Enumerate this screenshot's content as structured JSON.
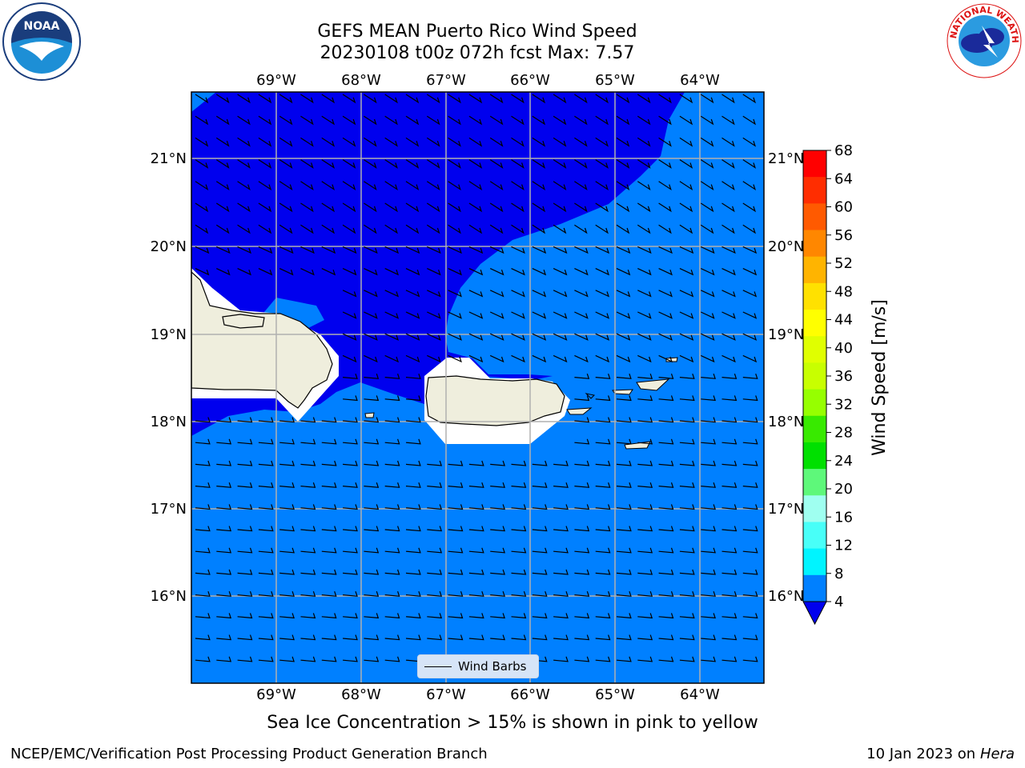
{
  "header": {
    "title_line1": "GEFS MEAN Puerto Rico Wind Speed",
    "title_line2": "20230108 t00z 072h fcst   Max: 7.57"
  },
  "logos": {
    "noaa": {
      "text": "NOAA"
    },
    "nws": {
      "text": "NATIONAL WEATHER SERVICE"
    }
  },
  "map": {
    "lon_labels": [
      "69°W",
      "68°W",
      "67°W",
      "66°W",
      "65°W",
      "64°W"
    ],
    "lat_labels": [
      "21°N",
      "20°N",
      "19°N",
      "18°N",
      "17°N",
      "16°N"
    ],
    "colors": {
      "calm_band": "#0000ee",
      "light_band": "#0080ff",
      "land": "#efeedd",
      "grid": "#b0b0b0"
    }
  },
  "legend": {
    "label": "Wind Barbs"
  },
  "colorbar": {
    "label": "Wind Speed [m/s]",
    "ticks": [
      "68",
      "64",
      "60",
      "56",
      "52",
      "48",
      "44",
      "40",
      "36",
      "32",
      "28",
      "24",
      "20",
      "16",
      "12",
      "8",
      "4"
    ],
    "colors": [
      "#ff0000",
      "#ff2d00",
      "#ff5a00",
      "#ff8700",
      "#ffb400",
      "#ffe100",
      "#ffff00",
      "#e0ff00",
      "#c8ff00",
      "#96ff00",
      "#38ea00",
      "#00e000",
      "#5ef87a",
      "#9ffff0",
      "#48fff8",
      "#00f4ff",
      "#0080ff"
    ],
    "under_color": "#0000ee"
  },
  "caption": "Sea Ice Concentration > 15% is shown in pink to yellow",
  "footer": {
    "left": "NCEP/EMC/Verification Post Processing Product Generation Branch",
    "right_date": "10 Jan 2023 on ",
    "right_host": "Hera"
  }
}
